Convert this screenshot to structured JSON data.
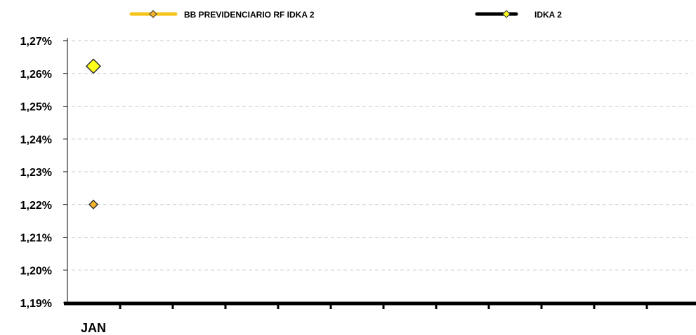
{
  "chart_data": {
    "type": "line",
    "title": "",
    "xlabel": "",
    "ylabel": "",
    "categories": [
      "JAN",
      "",
      "",
      "",
      "",
      "",
      "",
      "",
      "",
      "",
      "",
      ""
    ],
    "y_ticks": [
      "1,27%",
      "1,26%",
      "1,25%",
      "1,24%",
      "1,23%",
      "1,22%",
      "1,21%",
      "1,20%",
      "1,19%"
    ],
    "ylim": [
      1.19,
      1.27
    ],
    "y_unit": "%",
    "grid": true,
    "legend_position": "top",
    "series": [
      {
        "name": "BB PREVIDENCIARIO RF IDKA 2",
        "values": [
          1.22,
          null,
          null,
          null,
          null,
          null,
          null,
          null,
          null,
          null,
          null,
          null
        ],
        "line_color": "#F7C31A",
        "marker": "diamond",
        "marker_fill": "#F7B52C",
        "marker_stroke": "#333333"
      },
      {
        "name": "IDKA 2",
        "values": [
          1.2622,
          null,
          null,
          null,
          null,
          null,
          null,
          null,
          null,
          null,
          null,
          null
        ],
        "line_color": "#000000",
        "marker": "diamond",
        "marker_fill": "#FFFF1A",
        "marker_stroke": "#333333"
      }
    ]
  }
}
